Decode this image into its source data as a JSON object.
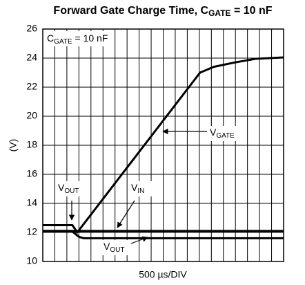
{
  "chart_data": {
    "type": "line",
    "title": {
      "text": "Forward Gate Charge Time, C",
      "sub": "GATE",
      "tail": " = 10 nF"
    },
    "inset_label": {
      "text": "C",
      "sub": "GATE",
      "tail": " = 10 nF"
    },
    "y_label": "(V)",
    "x_label": "500 µs/DIV",
    "xlim": [
      0,
      10
    ],
    "ylim": [
      10,
      26
    ],
    "yticks": [
      10,
      12,
      14,
      16,
      18,
      20,
      22,
      24,
      26
    ],
    "grid": true,
    "series": [
      {
        "color": "#000000",
        "x": [
          0,
          1.23,
          1.43,
          6.53,
          7.1,
          7.97,
          8.83,
          10
        ],
        "values": [
          12.5,
          12.5,
          12.0,
          23.0,
          23.4,
          23.7,
          23.95,
          24.05
        ]
      },
      {
        "color": "#000000",
        "x": [
          0,
          10
        ],
        "values": [
          12.1,
          12.1
        ]
      },
      {
        "color": "#000000",
        "x": [
          0,
          1.2,
          1.5,
          1.7,
          10
        ],
        "values": [
          12.1,
          12.1,
          11.7,
          11.6,
          11.6
        ]
      }
    ],
    "annotations": [
      {
        "text": "V",
        "sub": "GATE"
      },
      {
        "text": "V",
        "sub": "IN"
      },
      {
        "text": "V",
        "sub": "OUT"
      },
      {
        "text": "V",
        "sub": "OUT"
      }
    ]
  }
}
